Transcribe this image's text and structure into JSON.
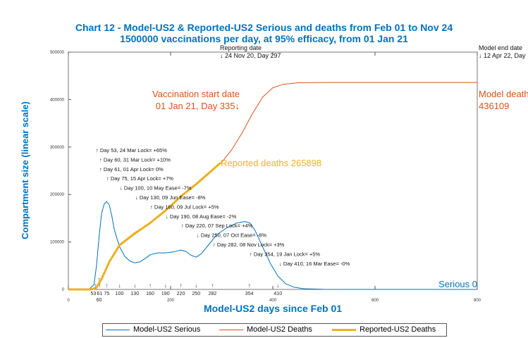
{
  "chart_data": {
    "type": "line",
    "title": "Chart 12 - Model-US2 & Reported-US2 Serious and deaths from Feb 01 to Nov 24",
    "subtitle": "1500000 vaccinations per day, at 95% efficacy, from 01 Jan 21",
    "xlabel": "Model-US2 days since Feb 01",
    "ylabel": "Compartment size (linear scale)",
    "xlim": [
      0,
      800
    ],
    "ylim": [
      0,
      500000
    ],
    "x_ticks": [
      0,
      200,
      400,
      600,
      800
    ],
    "y_ticks": [
      0,
      100000,
      200000,
      300000,
      400000,
      500000
    ],
    "grid": false,
    "legend_placement": "bottom",
    "series": [
      {
        "name": "Model-US2 Serious",
        "color": "#0072BD",
        "points": [
          [
            0,
            0
          ],
          [
            40,
            0
          ],
          [
            50,
            10000
          ],
          [
            55,
            50000
          ],
          [
            60,
            110000
          ],
          [
            65,
            160000
          ],
          [
            70,
            180000
          ],
          [
            75,
            185000
          ],
          [
            80,
            178000
          ],
          [
            85,
            155000
          ],
          [
            90,
            125000
          ],
          [
            100,
            90000
          ],
          [
            110,
            70000
          ],
          [
            120,
            60000
          ],
          [
            130,
            56000
          ],
          [
            140,
            58000
          ],
          [
            150,
            65000
          ],
          [
            160,
            73000
          ],
          [
            175,
            77000
          ],
          [
            190,
            77000
          ],
          [
            205,
            79000
          ],
          [
            220,
            83000
          ],
          [
            230,
            80000
          ],
          [
            240,
            72000
          ],
          [
            250,
            68000
          ],
          [
            260,
            75000
          ],
          [
            275,
            95000
          ],
          [
            290,
            115000
          ],
          [
            310,
            130000
          ],
          [
            330,
            140000
          ],
          [
            345,
            143000
          ],
          [
            355,
            140000
          ],
          [
            365,
            125000
          ],
          [
            380,
            90000
          ],
          [
            395,
            55000
          ],
          [
            410,
            28000
          ],
          [
            425,
            12000
          ],
          [
            440,
            5000
          ],
          [
            460,
            1500
          ],
          [
            500,
            200
          ],
          [
            550,
            0
          ],
          [
            800,
            0
          ]
        ]
      },
      {
        "name": "Model-US2 Deaths",
        "color": "#D95319",
        "points": [
          [
            0,
            0
          ],
          [
            45,
            0
          ],
          [
            55,
            5000
          ],
          [
            65,
            25000
          ],
          [
            80,
            60000
          ],
          [
            100,
            95000
          ],
          [
            130,
            120000
          ],
          [
            160,
            140000
          ],
          [
            190,
            165000
          ],
          [
            220,
            195000
          ],
          [
            250,
            220000
          ],
          [
            280,
            248000
          ],
          [
            300,
            268000
          ],
          [
            320,
            295000
          ],
          [
            340,
            330000
          ],
          [
            360,
            370000
          ],
          [
            380,
            405000
          ],
          [
            400,
            425000
          ],
          [
            420,
            432000
          ],
          [
            450,
            435500
          ],
          [
            500,
            436109
          ],
          [
            800,
            436109
          ]
        ]
      },
      {
        "name": "Reported-US2 Deaths",
        "color": "#EDB120",
        "points": [
          [
            0,
            0
          ],
          [
            45,
            0
          ],
          [
            55,
            4000
          ],
          [
            65,
            22000
          ],
          [
            80,
            58000
          ],
          [
            100,
            93000
          ],
          [
            130,
            118000
          ],
          [
            160,
            140000
          ],
          [
            190,
            166000
          ],
          [
            220,
            196000
          ],
          [
            250,
            222000
          ],
          [
            280,
            250000
          ],
          [
            297,
            265898
          ]
        ]
      }
    ],
    "annotations": {
      "reporting_date": {
        "line1": "Reporting date",
        "line2": "↓ 24 Nov 20, Day 297",
        "day": 297
      },
      "model_end": {
        "line1": "Model end date",
        "line2": "↓ 12 Apr 22, Day"
      },
      "vaccination": {
        "line1": "Vaccination start date",
        "line2": "01 Jan 21, Day 335↓",
        "color": "#D95319"
      },
      "model_deaths": {
        "line1": "Model death",
        "line2": "436109",
        "color": "#D95319"
      },
      "reported_deaths": {
        "text": "Reported deaths 265898",
        "color": "#EDB120"
      },
      "serious": {
        "text": "Serious 0",
        "color": "#0072BD"
      }
    },
    "interventions": [
      {
        "day": 53,
        "arrow": "↑",
        "text": "↑ Day 53, 24 Mar Lock= +65%"
      },
      {
        "day": 60,
        "arrow": "↑",
        "text": "↑ Day 60, 31 Mar Lock= +10%"
      },
      {
        "day": 61,
        "arrow": "↑",
        "text": "↑ Day 61, 01 Apr Lock= 0%"
      },
      {
        "day": 75,
        "arrow": "↑",
        "text": "↑ Day 75, 15 Apr Lock= +7%"
      },
      {
        "day": 100,
        "arrow": "↓",
        "text": "↓ Day 100, 10 May Ease= -7%"
      },
      {
        "day": 130,
        "arrow": "↓",
        "text": "↓ Day 130, 09 Jun Ease= -8%"
      },
      {
        "day": 160,
        "arrow": "↑",
        "text": "↑ Day 160, 09 Jul Lock= +5%"
      },
      {
        "day": 190,
        "arrow": "↓",
        "text": "↓ Day 190, 08 Aug Ease= -2%"
      },
      {
        "day": 220,
        "arrow": "↑",
        "text": "↑ Day 220, 07 Sep Lock= +4%"
      },
      {
        "day": 250,
        "arrow": "↓",
        "text": "↓ Day 250, 07 Oct Ease= -8%"
      },
      {
        "day": 282,
        "arrow": "↑",
        "text": "↑ Day 282, 08 Nov Lock= +3%"
      },
      {
        "day": 354,
        "arrow": "↑",
        "text": "↑ Day 354, 19 Jan Lock= +5%"
      },
      {
        "day": 410,
        "arrow": "↓",
        "text": "↓ Day 410, 16 Mar Ease= -0%"
      }
    ]
  }
}
